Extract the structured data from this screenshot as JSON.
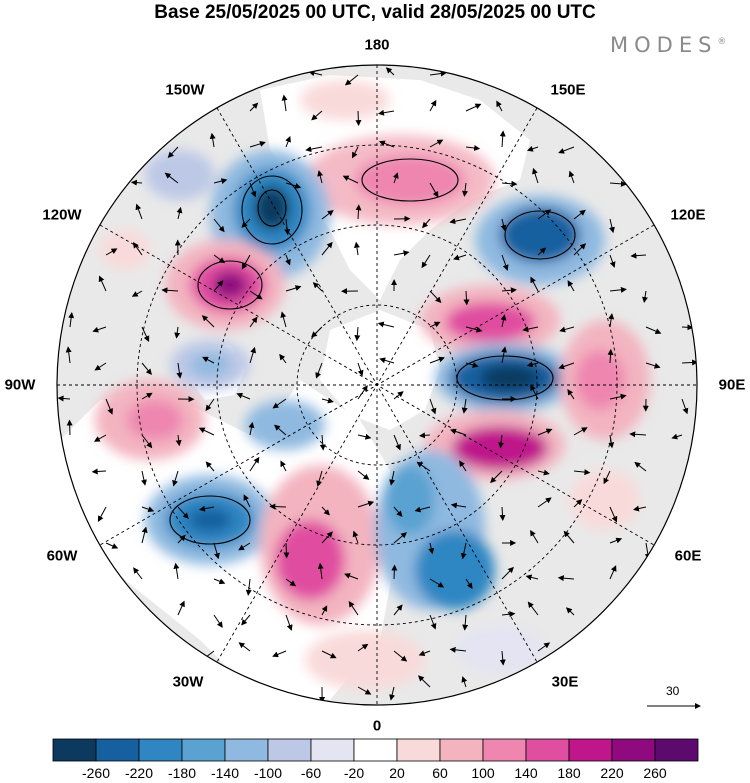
{
  "title": "Base 25/05/2025 00 UTC, valid 28/05/2025 00 UTC",
  "brand": "MODES",
  "longitude_labels": {
    "lon_180": "180",
    "lon_150E": "150E",
    "lon_120E": "120E",
    "lon_90E": "90E",
    "lon_60E": "60E",
    "lon_30E": "30E",
    "lon_0": "0",
    "lon_30W": "30W",
    "lon_60W": "60W",
    "lon_90W": "90W",
    "lon_120W": "120W",
    "lon_150W": "150W"
  },
  "vector_scale": "30",
  "colorbar": {
    "levels": [
      "-260",
      "-220",
      "-180",
      "-140",
      "-100",
      "-60",
      "-20",
      "20",
      "60",
      "100",
      "140",
      "180",
      "220",
      "260"
    ],
    "colors": [
      "#0b3a5e",
      "#1660a0",
      "#2f86c2",
      "#5aa2d2",
      "#8fb9e0",
      "#bcc8e6",
      "#e4e4f2",
      "#ffffff",
      "#f9dada",
      "#f3b4c0",
      "#ee86b0",
      "#e04ea0",
      "#c0168c",
      "#8e0a7e",
      "#5c0a6e"
    ]
  },
  "colors": {
    "land": "#e9e9e9",
    "ocean": "#ffffff",
    "graticule": "#000000"
  }
}
